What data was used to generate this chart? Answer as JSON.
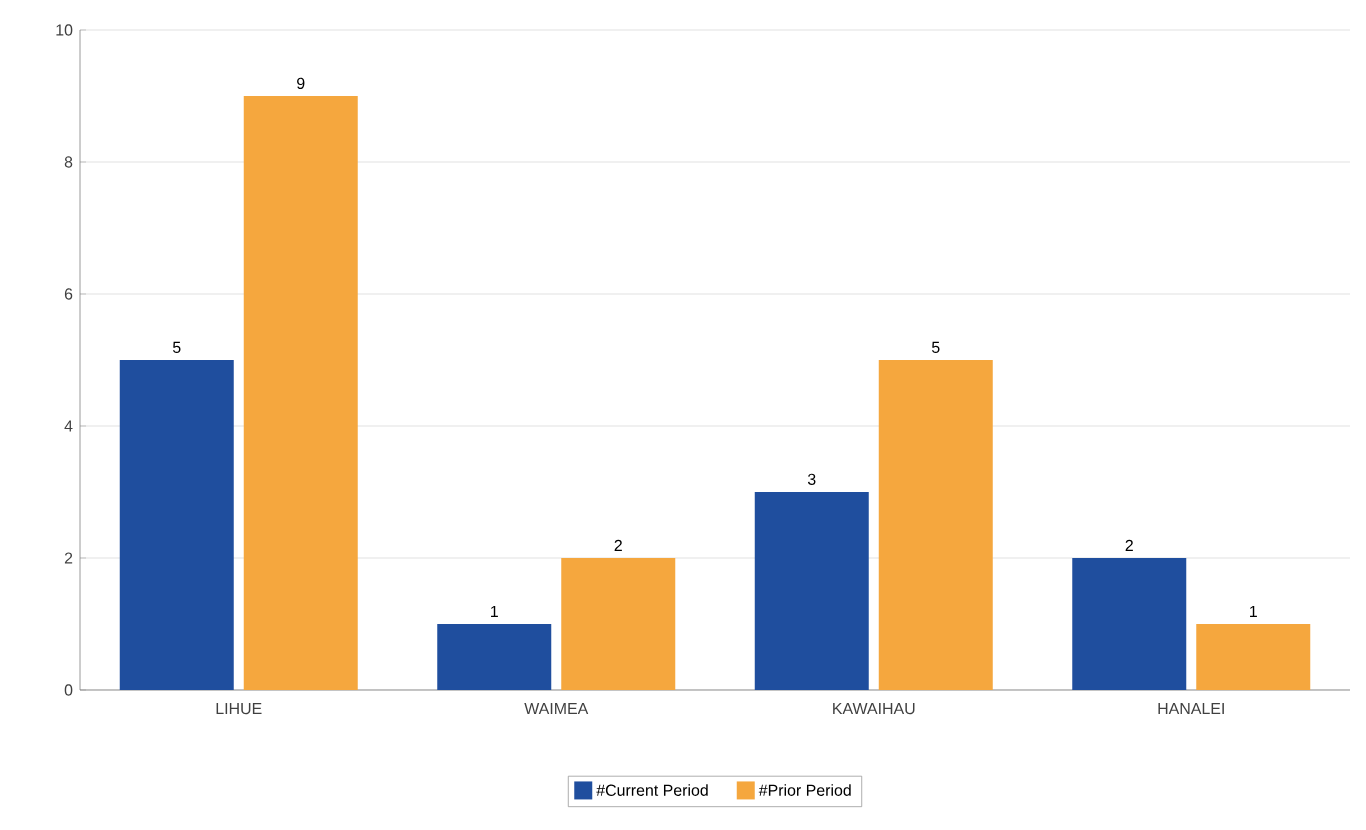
{
  "chart_data": {
    "type": "bar",
    "categories": [
      "LIHUE",
      "WAIMEA",
      "KAWAIHAU",
      "HANALEI"
    ],
    "series": [
      {
        "name": "#Current Period",
        "color": "#1f4e9e",
        "values": [
          5,
          1,
          3,
          2
        ]
      },
      {
        "name": "#Prior Period",
        "color": "#f5a73e",
        "values": [
          9,
          2,
          5,
          1
        ]
      }
    ],
    "ylim": [
      0,
      10
    ],
    "yticks": [
      0,
      2,
      4,
      6,
      8,
      10
    ],
    "grid": "y",
    "legend": "bottom",
    "data_labels": true
  }
}
